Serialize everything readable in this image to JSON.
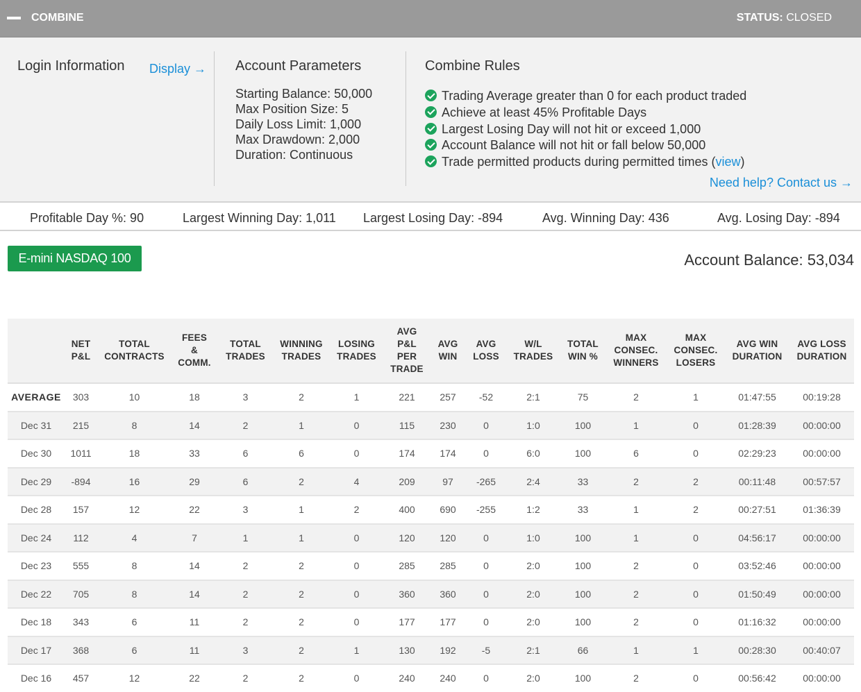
{
  "header": {
    "title": "COMBINE",
    "status_label": "STATUS:",
    "status_value": "CLOSED"
  },
  "login": {
    "title": "Login Information",
    "display_link": "Display →"
  },
  "account_parameters": {
    "title": "Account Parameters",
    "items": [
      "Starting Balance: 50,000",
      "Max Position Size: 5",
      "Daily Loss Limit: 1,000",
      "Max Drawdown: 2,000",
      "Duration: Continuous"
    ]
  },
  "combine_rules": {
    "title": "Combine Rules",
    "items": [
      "Trading Average greater than 0 for each product traded",
      "Achieve at least 45% Profitable Days",
      "Largest Losing Day will not hit or exceed 1,000",
      "Account Balance will not hit or fall below 50,000"
    ],
    "last_rule": {
      "text": "Trade permitted products during permitted times (",
      "link": "view",
      "suffix": ")"
    },
    "help_link": "Need help? Contact us →"
  },
  "stats": {
    "profitable_day": "Profitable Day %: 90",
    "largest_winning_day": "Largest Winning Day: 1,011",
    "largest_losing_day": "Largest Losing Day: -894",
    "avg_winning_day": "Avg. Winning Day: 436",
    "avg_losing_day": "Avg. Losing Day: -894"
  },
  "product_button": "E-mini NASDAQ 100",
  "account_balance": "Account Balance: 53,034",
  "table": {
    "headers": [
      [
        ""
      ],
      [
        "NET",
        "P&L"
      ],
      [
        "TOTAL",
        "CONTRACTS"
      ],
      [
        "FEES",
        "&",
        "COMM."
      ],
      [
        "TOTAL",
        "TRADES"
      ],
      [
        "WINNING",
        "TRADES"
      ],
      [
        "LOSING",
        "TRADES"
      ],
      [
        "AVG",
        "P&L",
        "PER",
        "TRADE"
      ],
      [
        "AVG",
        "WIN"
      ],
      [
        "AVG",
        "LOSS"
      ],
      [
        "W/L",
        "TRADES"
      ],
      [
        "TOTAL",
        "WIN %"
      ],
      [
        "MAX",
        "CONSEC.",
        "WINNERS"
      ],
      [
        "MAX",
        "CONSEC.",
        "LOSERS"
      ],
      [
        "AVG WIN",
        "DURATION"
      ],
      [
        "AVG LOSS",
        "DURATION"
      ]
    ],
    "rows": [
      [
        "AVERAGE",
        "303",
        "10",
        "18",
        "3",
        "2",
        "1",
        "221",
        "257",
        "-52",
        "2:1",
        "75",
        "2",
        "1",
        "01:47:55",
        "00:19:28"
      ],
      [
        "Dec 31",
        "215",
        "8",
        "14",
        "2",
        "1",
        "0",
        "115",
        "230",
        "0",
        "1:0",
        "100",
        "1",
        "0",
        "01:28:39",
        "00:00:00"
      ],
      [
        "Dec 30",
        "1011",
        "18",
        "33",
        "6",
        "6",
        "0",
        "174",
        "174",
        "0",
        "6:0",
        "100",
        "6",
        "0",
        "02:29:23",
        "00:00:00"
      ],
      [
        "Dec 29",
        "-894",
        "16",
        "29",
        "6",
        "2",
        "4",
        "209",
        "97",
        "-265",
        "2:4",
        "33",
        "2",
        "2",
        "00:11:48",
        "00:57:57"
      ],
      [
        "Dec 28",
        "157",
        "12",
        "22",
        "3",
        "1",
        "2",
        "400",
        "690",
        "-255",
        "1:2",
        "33",
        "1",
        "2",
        "00:27:51",
        "01:36:39"
      ],
      [
        "Dec 24",
        "112",
        "4",
        "7",
        "1",
        "1",
        "0",
        "120",
        "120",
        "0",
        "1:0",
        "100",
        "1",
        "0",
        "04:56:17",
        "00:00:00"
      ],
      [
        "Dec 23",
        "555",
        "8",
        "14",
        "2",
        "2",
        "0",
        "285",
        "285",
        "0",
        "2:0",
        "100",
        "2",
        "0",
        "03:52:46",
        "00:00:00"
      ],
      [
        "Dec 22",
        "705",
        "8",
        "14",
        "2",
        "2",
        "0",
        "360",
        "360",
        "0",
        "2:0",
        "100",
        "2",
        "0",
        "01:50:49",
        "00:00:00"
      ],
      [
        "Dec 18",
        "343",
        "6",
        "11",
        "2",
        "2",
        "0",
        "177",
        "177",
        "0",
        "2:0",
        "100",
        "2",
        "0",
        "01:16:32",
        "00:00:00"
      ],
      [
        "Dec 17",
        "368",
        "6",
        "11",
        "3",
        "2",
        "1",
        "130",
        "192",
        "-5",
        "2:1",
        "66",
        "1",
        "1",
        "00:28:30",
        "00:40:07"
      ],
      [
        "Dec 16",
        "457",
        "12",
        "22",
        "2",
        "2",
        "0",
        "240",
        "240",
        "0",
        "2:0",
        "100",
        "2",
        "0",
        "00:56:42",
        "00:00:00"
      ]
    ]
  }
}
